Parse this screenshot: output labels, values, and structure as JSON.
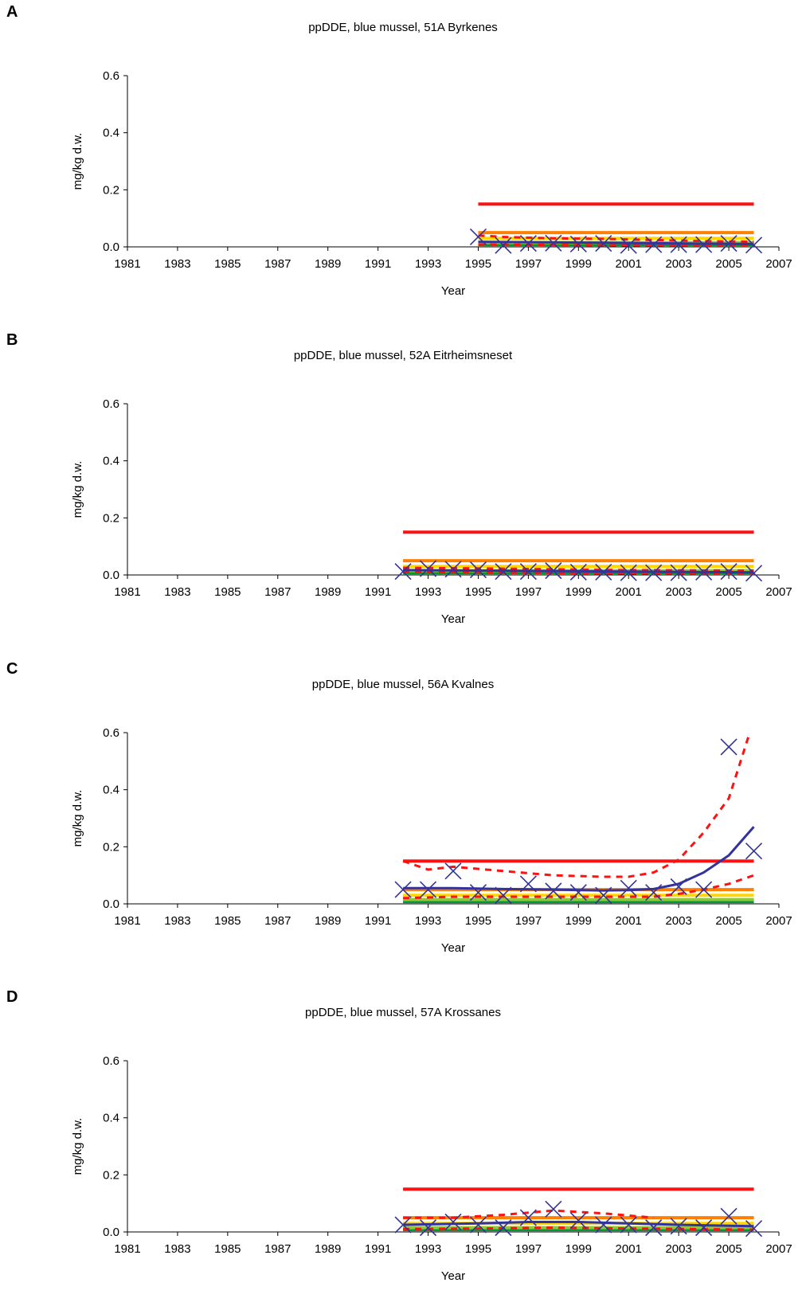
{
  "colors": {
    "class_v": "#ff1111",
    "class_iv": "#ff7f00",
    "class_iii": "#ffd700",
    "class_ii": "#8dc63f",
    "class_i": "#009933",
    "observed": "#333399",
    "trend": "#333399",
    "confidence": "#ff1111",
    "axis": "#000000"
  },
  "chart_data": [
    {
      "type": "line",
      "panel_letter": "A",
      "title": "ppDDE, blue mussel, 51A Byrkenes",
      "xlabel": "Year",
      "ylabel": "mg/kg d.w.",
      "xlim": [
        1981,
        2007
      ],
      "ylim": [
        0,
        0.6
      ],
      "xticks": [
        "1981",
        "1983",
        "1985",
        "1987",
        "1989",
        "1991",
        "1993",
        "1995",
        "1997",
        "1999",
        "2001",
        "2003",
        "2005",
        "2007"
      ],
      "yticks": [
        "0.0",
        "0.2",
        "0.4",
        "0.6"
      ],
      "grid": false,
      "class_limits": [
        {
          "value": 0.15,
          "color_key": "class_v",
          "x": [
            1995,
            2006
          ]
        },
        {
          "value": 0.05,
          "color_key": "class_iv",
          "x": [
            1995,
            2006
          ]
        },
        {
          "value": 0.03,
          "color_key": "class_iii",
          "x": [
            1995,
            2006
          ]
        },
        {
          "value": 0.015,
          "color_key": "class_ii",
          "x": [
            1995,
            2006
          ]
        },
        {
          "value": 0.008,
          "color_key": "class_i",
          "x": [
            1995,
            2006
          ]
        }
      ],
      "observed": {
        "x": [
          1995,
          1996,
          1997,
          1998,
          1999,
          2000,
          2001,
          2002,
          2003,
          2004,
          2005,
          2006
        ],
        "y": [
          0.035,
          0.005,
          0.012,
          0.013,
          0.01,
          0.012,
          0.005,
          0.008,
          0.008,
          0.008,
          0.012,
          0.006
        ]
      },
      "trend": {
        "x": [
          1995,
          2006
        ],
        "y": [
          0.018,
          0.01
        ]
      },
      "confidence_upper": {
        "x": [
          1995,
          1996,
          1998,
          2000,
          2002,
          2004,
          2006
        ],
        "y": [
          0.04,
          0.035,
          0.03,
          0.028,
          0.024,
          0.02,
          0.018
        ]
      },
      "confidence_lower": {
        "x": [
          1995,
          2000,
          2006
        ],
        "y": [
          0.008,
          0.006,
          0.004
        ]
      }
    },
    {
      "type": "line",
      "panel_letter": "B",
      "title": "ppDDE, blue mussel, 52A Eitrheimsneset",
      "xlabel": "Year",
      "ylabel": "mg/kg d.w.",
      "xlim": [
        1981,
        2007
      ],
      "ylim": [
        0,
        0.6
      ],
      "xticks": [
        "1981",
        "1983",
        "1985",
        "1987",
        "1989",
        "1991",
        "1993",
        "1995",
        "1997",
        "1999",
        "2001",
        "2003",
        "2005",
        "2007"
      ],
      "yticks": [
        "0.0",
        "0.2",
        "0.4",
        "0.6"
      ],
      "grid": false,
      "class_limits": [
        {
          "value": 0.15,
          "color_key": "class_v",
          "x": [
            1992,
            2006
          ]
        },
        {
          "value": 0.05,
          "color_key": "class_iv",
          "x": [
            1992,
            2006
          ]
        },
        {
          "value": 0.03,
          "color_key": "class_iii",
          "x": [
            1992,
            2006
          ]
        },
        {
          "value": 0.015,
          "color_key": "class_ii",
          "x": [
            1992,
            2006
          ]
        },
        {
          "value": 0.008,
          "color_key": "class_i",
          "x": [
            1992,
            2006
          ]
        }
      ],
      "observed": {
        "x": [
          1992,
          1993,
          1994,
          1995,
          1996,
          1997,
          1998,
          1999,
          2000,
          2001,
          2002,
          2003,
          2004,
          2005,
          2006
        ],
        "y": [
          0.012,
          0.022,
          0.02,
          0.018,
          0.012,
          0.012,
          0.015,
          0.01,
          0.01,
          0.008,
          0.008,
          0.008,
          0.01,
          0.012,
          0.006
        ]
      },
      "trend": {
        "x": [
          1992,
          2006
        ],
        "y": [
          0.017,
          0.009
        ]
      },
      "confidence_upper": {
        "x": [
          1992,
          1996,
          2000,
          2006
        ],
        "y": [
          0.025,
          0.022,
          0.018,
          0.015
        ]
      },
      "confidence_lower": {
        "x": [
          1992,
          2000,
          2006
        ],
        "y": [
          0.01,
          0.006,
          0.004
        ]
      }
    },
    {
      "type": "line",
      "panel_letter": "C",
      "title": "ppDDE, blue mussel, 56A Kvalnes",
      "xlabel": "Year",
      "ylabel": "mg/kg d.w.",
      "xlim": [
        1981,
        2007
      ],
      "ylim": [
        0,
        0.6
      ],
      "xticks": [
        "1981",
        "1983",
        "1985",
        "1987",
        "1989",
        "1991",
        "1993",
        "1995",
        "1997",
        "1999",
        "2001",
        "2003",
        "2005",
        "2007"
      ],
      "yticks": [
        "0.0",
        "0.2",
        "0.4",
        "0.6"
      ],
      "grid": false,
      "class_limits": [
        {
          "value": 0.15,
          "color_key": "class_v",
          "x": [
            1992,
            2006
          ]
        },
        {
          "value": 0.05,
          "color_key": "class_iv",
          "x": [
            1992,
            2006
          ]
        },
        {
          "value": 0.03,
          "color_key": "class_iii",
          "x": [
            1992,
            2006
          ]
        },
        {
          "value": 0.015,
          "color_key": "class_ii",
          "x": [
            1992,
            2006
          ]
        },
        {
          "value": 0.008,
          "color_key": "class_i",
          "x": [
            1992,
            2006
          ]
        }
      ],
      "observed": {
        "x": [
          1992,
          1993,
          1994,
          1995,
          1996,
          1997,
          1998,
          1999,
          2000,
          2001,
          2002,
          2003,
          2004,
          2005,
          2006
        ],
        "y": [
          0.05,
          0.05,
          0.115,
          0.04,
          0.03,
          0.07,
          0.045,
          0.04,
          0.03,
          0.055,
          0.04,
          0.06,
          0.05,
          0.55,
          0.185
        ]
      },
      "trend": {
        "x": [
          1992,
          1994,
          1996,
          1998,
          2000,
          2001,
          2002,
          2003,
          2004,
          2005,
          2006
        ],
        "y": [
          0.055,
          0.055,
          0.052,
          0.05,
          0.047,
          0.048,
          0.052,
          0.07,
          0.11,
          0.17,
          0.27
        ]
      },
      "confidence_upper": {
        "x": [
          1992,
          1993,
          1994,
          1996,
          1998,
          2000,
          2001,
          2002,
          2003,
          2004,
          2005,
          2005.8
        ],
        "y": [
          0.15,
          0.12,
          0.13,
          0.115,
          0.1,
          0.095,
          0.095,
          0.11,
          0.155,
          0.25,
          0.37,
          0.59
        ]
      },
      "confidence_lower": {
        "x": [
          1992,
          1994,
          1996,
          1998,
          2000,
          2002,
          2003,
          2004,
          2005,
          2006
        ],
        "y": [
          0.02,
          0.025,
          0.025,
          0.025,
          0.025,
          0.025,
          0.035,
          0.05,
          0.07,
          0.1
        ]
      }
    },
    {
      "type": "line",
      "panel_letter": "D",
      "title": "ppDDE, blue mussel, 57A Krossanes",
      "xlabel": "Year",
      "ylabel": "mg/kg d.w.",
      "xlim": [
        1981,
        2007
      ],
      "ylim": [
        0,
        0.6
      ],
      "xticks": [
        "1981",
        "1983",
        "1985",
        "1987",
        "1989",
        "1991",
        "1993",
        "1995",
        "1997",
        "1999",
        "2001",
        "2003",
        "2005",
        "2007"
      ],
      "yticks": [
        "0.0",
        "0.2",
        "0.4",
        "0.6"
      ],
      "grid": false,
      "class_limits": [
        {
          "value": 0.15,
          "color_key": "class_v",
          "x": [
            1992,
            2006
          ]
        },
        {
          "value": 0.05,
          "color_key": "class_iv",
          "x": [
            1992,
            2006
          ]
        },
        {
          "value": 0.03,
          "color_key": "class_iii",
          "x": [
            1992,
            2006
          ]
        },
        {
          "value": 0.015,
          "color_key": "class_ii",
          "x": [
            1992,
            2006
          ]
        },
        {
          "value": 0.008,
          "color_key": "class_i",
          "x": [
            1992,
            2006
          ]
        }
      ],
      "observed": {
        "x": [
          1992,
          1993,
          1994,
          1995,
          1996,
          1997,
          1998,
          1999,
          2000,
          2001,
          2002,
          2003,
          2004,
          2005,
          2006
        ],
        "y": [
          0.025,
          0.015,
          0.035,
          0.025,
          0.015,
          0.05,
          0.08,
          0.04,
          0.025,
          0.025,
          0.015,
          0.02,
          0.015,
          0.055,
          0.012
        ]
      },
      "trend": {
        "x": [
          1992,
          1995,
          1997,
          1999,
          2001,
          2003,
          2006
        ],
        "y": [
          0.025,
          0.03,
          0.035,
          0.035,
          0.03,
          0.025,
          0.02
        ]
      },
      "confidence_upper": {
        "x": [
          1992,
          1994,
          1996,
          1998,
          2000,
          2002
        ],
        "y": [
          0.05,
          0.05,
          0.06,
          0.075,
          0.065,
          0.05
        ]
      },
      "confidence_lower": {
        "x": [
          1992,
          1995,
          1998,
          2001,
          2006
        ],
        "y": [
          0.01,
          0.012,
          0.015,
          0.012,
          0.008
        ]
      }
    }
  ]
}
